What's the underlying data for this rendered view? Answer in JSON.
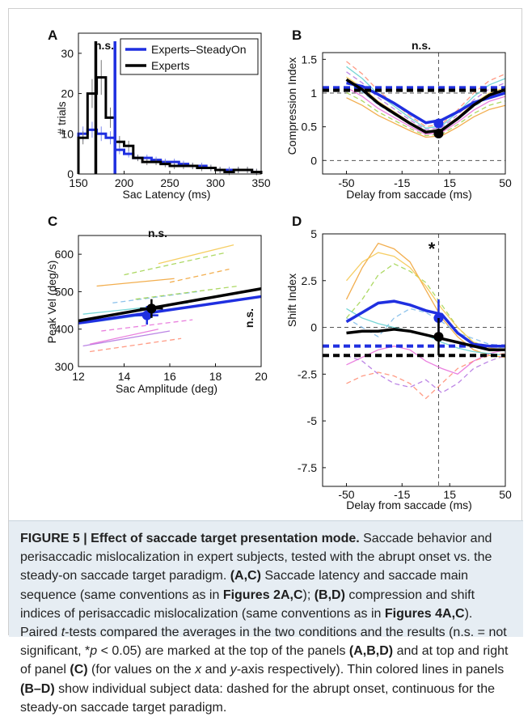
{
  "panels": {
    "A": {
      "letter": "A",
      "sig": "n.s.",
      "legend": [
        "Experts–SteadyOn",
        "Experts"
      ],
      "xlabel": "Sac Latency (ms)",
      "ylabel": "# trials",
      "xticks": [
        "150",
        "200",
        "250",
        "300",
        "350"
      ],
      "yticks": [
        "0",
        "10",
        "20",
        "30"
      ]
    },
    "B": {
      "letter": "B",
      "sig": "n.s.",
      "xlabel": "Delay from saccade (ms)",
      "ylabel": "Compression Index",
      "xticks": [
        "-50",
        "-15",
        "15",
        "50"
      ],
      "yticks": [
        "0",
        "0.5",
        "1",
        "1.5"
      ]
    },
    "C": {
      "letter": "C",
      "sig_top": "n.s.",
      "sig_right": "n.s.",
      "xlabel": "Sac Amplitude (deg)",
      "ylabel": "Peak Vel (deg/s)",
      "xticks": [
        "12",
        "14",
        "16",
        "18",
        "20"
      ],
      "yticks": [
        "300",
        "400",
        "500",
        "600"
      ]
    },
    "D": {
      "letter": "D",
      "sig": "*",
      "xlabel": "Delay from saccade (ms)",
      "ylabel": "Shift Index",
      "xticks": [
        "-50",
        "-15",
        "15",
        "50"
      ],
      "yticks": [
        "5",
        "2.5",
        "0",
        "-2.5",
        "-5",
        "-7.5"
      ]
    }
  },
  "colors": {
    "steadyon": "#1f2fe0",
    "experts": "#000000"
  },
  "chart_data": [
    {
      "panel": "A",
      "type": "bar",
      "xlabel": "Sac Latency (ms)",
      "ylabel": "# trials",
      "xlim": [
        150,
        350
      ],
      "ylim": [
        0,
        35
      ],
      "bin_edges": [
        150,
        160,
        170,
        180,
        190,
        200,
        210,
        220,
        230,
        240,
        250,
        260,
        270,
        280,
        290,
        300,
        310,
        320,
        330,
        340,
        350
      ],
      "series": [
        {
          "name": "Experts–SteadyOn",
          "values": [
            10,
            11,
            10,
            9,
            6,
            5,
            4,
            4,
            3.5,
            3,
            3,
            2.5,
            2,
            2,
            1.5,
            1,
            1,
            1,
            1,
            0.5
          ]
        },
        {
          "name": "Experts",
          "values": [
            9,
            20,
            24,
            14,
            8,
            7,
            4,
            3,
            3,
            2.5,
            2,
            2,
            2,
            1.5,
            1.5,
            1,
            0.5,
            1,
            1,
            0.5
          ]
        }
      ],
      "medians": {
        "Experts–SteadyOn": 190,
        "Experts": 169
      }
    },
    {
      "panel": "B",
      "type": "line",
      "xlabel": "Delay from saccade (ms)",
      "ylabel": "Compression Index",
      "xlim": [
        -65,
        50
      ],
      "ylim": [
        -0.2,
        1.6
      ],
      "x": [
        -50,
        -40,
        -30,
        -20,
        -10,
        0,
        10,
        20,
        30,
        40,
        50
      ],
      "series": [
        {
          "name": "Experts–SteadyOn",
          "values": [
            1.15,
            1.1,
            0.98,
            0.85,
            0.7,
            0.56,
            0.6,
            0.72,
            0.86,
            0.93,
            1.0
          ]
        },
        {
          "name": "Experts",
          "values": [
            1.2,
            1.05,
            0.85,
            0.7,
            0.55,
            0.42,
            0.45,
            0.62,
            0.82,
            0.97,
            1.05
          ]
        }
      ],
      "markers": {
        "Experts–SteadyOn": [
          8,
          0.55
        ],
        "Experts": [
          8,
          0.4
        ]
      },
      "baselines": {
        "Experts–SteadyOn": 1.08,
        "Experts": 1.04
      }
    },
    {
      "panel": "C",
      "type": "scatter",
      "xlabel": "Sac Amplitude (deg)",
      "ylabel": "Peak Vel (deg/s)",
      "xlim": [
        12,
        20
      ],
      "ylim": [
        300,
        650
      ],
      "series": [
        {
          "name": "Experts–SteadyOn",
          "fit": [
            [
              12,
              416
            ],
            [
              20,
              487
            ]
          ],
          "mean": [
            15.0,
            437
          ]
        },
        {
          "name": "Experts",
          "fit": [
            [
              12,
              422
            ],
            [
              20,
              508
            ]
          ],
          "mean": [
            15.2,
            455
          ]
        }
      ]
    },
    {
      "panel": "D",
      "type": "line",
      "xlabel": "Delay from saccade (ms)",
      "ylabel": "Shift Index",
      "xlim": [
        -65,
        50
      ],
      "ylim": [
        -8.5,
        5
      ],
      "x": [
        -50,
        -40,
        -30,
        -20,
        -10,
        0,
        10,
        20,
        30,
        40,
        50
      ],
      "series": [
        {
          "name": "Experts–SteadyOn",
          "values": [
            0.3,
            0.8,
            1.3,
            1.4,
            1.2,
            0.9,
            0.7,
            -0.3,
            -0.9,
            -1.0,
            -1.0
          ]
        },
        {
          "name": "Experts",
          "values": [
            -0.3,
            -0.2,
            -0.2,
            -0.1,
            -0.2,
            -0.4,
            -0.6,
            -0.8,
            -1.0,
            -1.2,
            -1.2
          ]
        }
      ],
      "markers": {
        "Experts–SteadyOn": [
          8,
          0.5
        ],
        "Experts": [
          8,
          -0.5
        ]
      },
      "baselines": {
        "Experts–SteadyOn": -1.0,
        "Experts": -1.5
      }
    }
  ],
  "caption": {
    "title": "FIGURE 5 | Effect of saccade target presentation mode.",
    "s1": " Saccade behavior and perisaccadic mislocalization in expert subjects, tested with the abrupt onset vs. the steady-on saccade target paradigm. ",
    "l1": "(A,C)",
    "s2": " Saccade latency and saccade main sequence (same conventions as in ",
    "l2": "Figures 2A,C",
    "s3": "); ",
    "l3": "(B,D)",
    "s4": " compression and shift indices of perisaccadic mislocalization (same conventions as in ",
    "l4": "Figures 4A,C",
    "s5": "). Paired ",
    "t": "t",
    "s6": "-tests compared the averages in the two conditions and the results (n.s. = not significant, *",
    "p": "p",
    "s7": " < 0.05) are marked at the top of the panels ",
    "l5": "(A,B,D)",
    "s8": " and at top and right of panel ",
    "l6": "(C)",
    "s9": " (for values on the ",
    "x": "x",
    "s10": " and ",
    "y": "y",
    "s11": "-axis respectively). Thin colored lines in panels ",
    "l7": "(B–D)",
    "s12": " show individual subject data: dashed for the abrupt onset, continuous for the steady-on saccade target paradigm."
  }
}
